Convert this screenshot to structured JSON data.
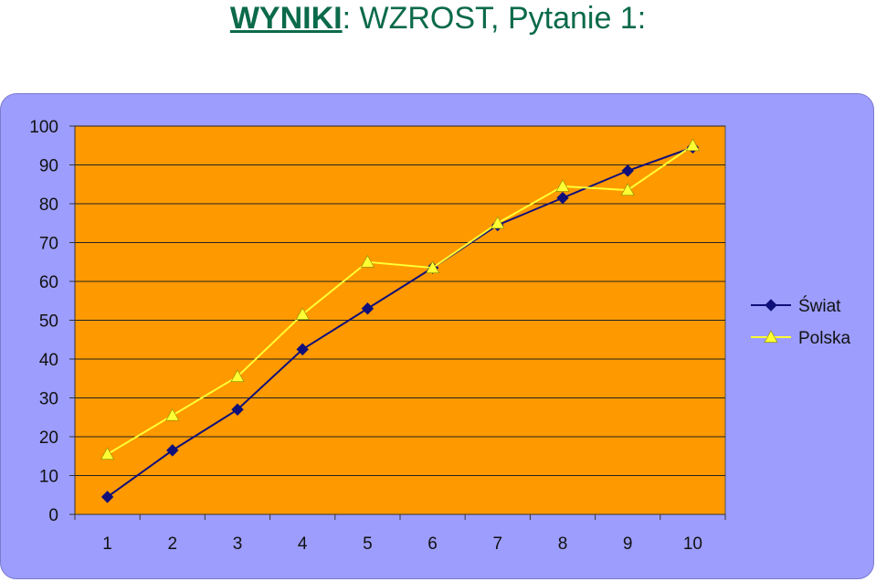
{
  "title": {
    "part1": "WYNIKI",
    "part2": ": WZROST, Pytanie 1:"
  },
  "colors": {
    "title": "#0b6a4a",
    "panel": "#9d9dfd",
    "plot": "#ff9900",
    "grid": "#222222",
    "series_swiat": "#10107a",
    "series_polska": "#ffff33"
  },
  "chart_data": {
    "type": "line",
    "title": "",
    "xlabel": "",
    "ylabel": "",
    "categories": [
      "1",
      "2",
      "3",
      "4",
      "5",
      "6",
      "7",
      "8",
      "9",
      "10"
    ],
    "ylim": [
      0,
      100
    ],
    "yticks": [
      0,
      10,
      20,
      30,
      40,
      50,
      60,
      70,
      80,
      90,
      100
    ],
    "grid": true,
    "legend": "right",
    "series": [
      {
        "name": "Świat",
        "marker": "diamond",
        "values": [
          4.5,
          16.5,
          27,
          42.5,
          53,
          63.5,
          74.5,
          81.5,
          88.5,
          94.5
        ]
      },
      {
        "name": "Polska",
        "marker": "triangle",
        "values": [
          15.5,
          25.5,
          35.5,
          51.5,
          65,
          63.5,
          75,
          84.5,
          83.5,
          95
        ]
      }
    ]
  }
}
